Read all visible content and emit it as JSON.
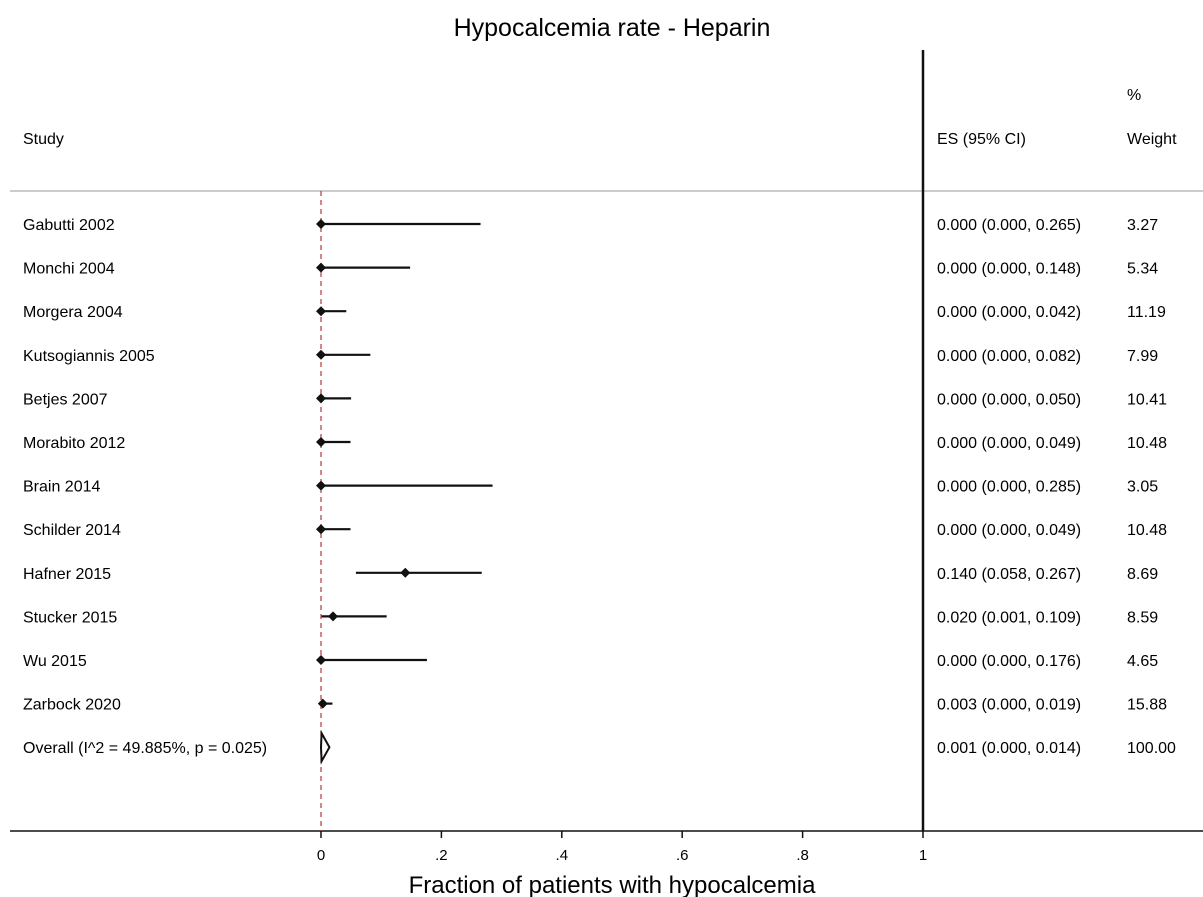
{
  "chart_data": {
    "type": "forest",
    "title": "Hypocalcemia rate - Heparin",
    "xlabel": "Fraction of patients with hypocalcemia",
    "xlim": [
      0,
      1
    ],
    "xticks": [
      "0",
      ".2",
      ".4",
      ".6",
      ".8",
      "1"
    ],
    "xtick_values": [
      0,
      0.2,
      0.4,
      0.6,
      0.8,
      1
    ],
    "reference_line": 0,
    "columns": {
      "study": "Study",
      "es": "ES (95% CI)",
      "weight_pct": "%",
      "weight": "Weight"
    },
    "studies": [
      {
        "name": "Gabutti 2002",
        "es": 0.0,
        "lo": 0.0,
        "hi": 0.265,
        "es_text": "0.000 (0.000, 0.265)",
        "weight": "3.27"
      },
      {
        "name": "Monchi 2004",
        "es": 0.0,
        "lo": 0.0,
        "hi": 0.148,
        "es_text": "0.000 (0.000, 0.148)",
        "weight": "5.34"
      },
      {
        "name": "Morgera 2004",
        "es": 0.0,
        "lo": 0.0,
        "hi": 0.042,
        "es_text": "0.000 (0.000, 0.042)",
        "weight": "11.19"
      },
      {
        "name": "Kutsogiannis 2005",
        "es": 0.0,
        "lo": 0.0,
        "hi": 0.082,
        "es_text": "0.000 (0.000, 0.082)",
        "weight": "7.99"
      },
      {
        "name": "Betjes 2007",
        "es": 0.0,
        "lo": 0.0,
        "hi": 0.05,
        "es_text": "0.000 (0.000, 0.050)",
        "weight": "10.41"
      },
      {
        "name": "Morabito 2012",
        "es": 0.0,
        "lo": 0.0,
        "hi": 0.049,
        "es_text": "0.000 (0.000, 0.049)",
        "weight": "10.48"
      },
      {
        "name": "Brain 2014",
        "es": 0.0,
        "lo": 0.0,
        "hi": 0.285,
        "es_text": "0.000 (0.000, 0.285)",
        "weight": "3.05"
      },
      {
        "name": "Schilder 2014",
        "es": 0.0,
        "lo": 0.0,
        "hi": 0.049,
        "es_text": "0.000 (0.000, 0.049)",
        "weight": "10.48"
      },
      {
        "name": "Hafner 2015",
        "es": 0.14,
        "lo": 0.058,
        "hi": 0.267,
        "es_text": "0.140 (0.058, 0.267)",
        "weight": "8.69"
      },
      {
        "name": "Stucker 2015",
        "es": 0.02,
        "lo": 0.001,
        "hi": 0.109,
        "es_text": "0.020 (0.001, 0.109)",
        "weight": "8.59"
      },
      {
        "name": "Wu 2015",
        "es": 0.0,
        "lo": 0.0,
        "hi": 0.176,
        "es_text": "0.000 (0.000, 0.176)",
        "weight": "4.65"
      },
      {
        "name": "Zarbock 2020",
        "es": 0.003,
        "lo": 0.0,
        "hi": 0.019,
        "es_text": "0.003 (0.000, 0.019)",
        "weight": "15.88"
      }
    ],
    "overall": {
      "name": "Overall  (I^2 = 49.885%, p = 0.025)",
      "es": 0.001,
      "lo": 0.0,
      "hi": 0.014,
      "es_text": "0.001 (0.000, 0.014)",
      "weight": "100.00"
    },
    "colors": {
      "ink": "#111111",
      "reference": "#b03a3a",
      "rule": "#bbbbbb"
    }
  }
}
